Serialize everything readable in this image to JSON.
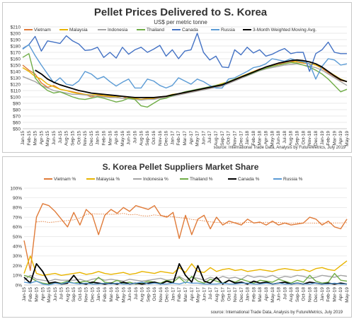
{
  "chart_data": [
    {
      "type": "line",
      "title": "Pellet Prices Delivered to S. Korea",
      "subtitle": "US$ per metric tonne",
      "source": "source: International Trade Data, Analysis by FutureMetrics, July 2019",
      "ylim": [
        50,
        210
      ],
      "y_ticks": [
        "$50",
        "$60",
        "$70",
        "$80",
        "$90",
        "$100",
        "$110",
        "$120",
        "$130",
        "$140",
        "$150",
        "$160",
        "$170",
        "$180",
        "$190",
        "$200",
        "$210"
      ],
      "x_labels": [
        "Jan-15",
        "Feb-15",
        "Mar-15",
        "Apr-15",
        "May-15",
        "Jun-15",
        "Jul-15",
        "Aug-15",
        "Sep-15",
        "Oct-15",
        "Nov-15",
        "Dec-15",
        "Jan-16",
        "Feb-16",
        "Mar-16",
        "Apr-16",
        "May-16",
        "Jun-16",
        "Jul-16",
        "Aug-16",
        "Sep-16",
        "Oct-16",
        "Nov-16",
        "Dec-16",
        "Jan-17",
        "Feb-17",
        "Mar-17",
        "Apr-17",
        "May-17",
        "Jun-17",
        "Jul-17",
        "Aug-17",
        "Sep-17",
        "Oct-17",
        "Nov-17",
        "Dec-17",
        "Jan-18",
        "Feb-18",
        "Mar-18",
        "Apr-18",
        "May-18",
        "Jun-18",
        "Jul-18",
        "Aug-18",
        "Sep-18",
        "Oct-18",
        "Nov-18",
        "Dec-18",
        "Jan-19",
        "Feb-19",
        "Mar-19",
        "Apr-19",
        "May-19"
      ],
      "grid": true,
      "legend_position": "top",
      "series": [
        {
          "name": "Vietnam",
          "color": "#e07b39",
          "values": [
            150,
            142,
            136,
            122,
            115,
            118,
            112,
            110,
            108,
            106,
            104,
            100,
            102,
            101,
            100,
            99,
            98,
            100,
            97,
            96,
            98,
            97,
            99,
            100,
            103,
            104,
            106,
            108,
            110,
            112,
            114,
            116,
            118,
            122,
            126,
            130,
            134,
            140,
            144,
            146,
            149,
            151,
            154,
            156,
            155,
            153,
            152,
            150,
            145,
            138,
            132,
            126,
            124
          ]
        },
        {
          "name": "Malaysia",
          "color": "#e8b400",
          "values": [
            146,
            140,
            132,
            128,
            120,
            116,
            112,
            110,
            107,
            105,
            104,
            103,
            104,
            102,
            101,
            100,
            101,
            99,
            98,
            96,
            97,
            98,
            100,
            101,
            104,
            105,
            107,
            109,
            111,
            113,
            115,
            118,
            121,
            124,
            128,
            132,
            136,
            140,
            143,
            146,
            148,
            150,
            152,
            154,
            156,
            154,
            152,
            150,
            146,
            140,
            134,
            128,
            124
          ]
        },
        {
          "name": "Indonesia",
          "color": "#a5a5a5",
          "values": [
            132,
            128,
            124,
            118,
            114,
            110,
            108,
            106,
            104,
            104,
            103,
            102,
            101,
            100,
            99,
            99,
            98,
            97,
            96,
            95,
            96,
            96,
            98,
            99,
            101,
            103,
            105,
            107,
            109,
            111,
            113,
            115,
            117,
            121,
            125,
            129,
            133,
            137,
            141,
            144,
            146,
            148,
            150,
            151,
            152,
            150,
            148,
            146,
            142,
            136,
            130,
            124,
            118
          ]
        },
        {
          "name": "Thailand",
          "color": "#70ad47",
          "values": [
            162,
            168,
            130,
            118,
            110,
            106,
            108,
            104,
            100,
            97,
            96,
            98,
            100,
            98,
            95,
            92,
            94,
            98,
            96,
            86,
            84,
            90,
            96,
            98,
            102,
            105,
            108,
            110,
            112,
            114,
            116,
            118,
            120,
            124,
            128,
            131,
            134,
            138,
            142,
            145,
            148,
            150,
            152,
            154,
            153,
            150,
            147,
            142,
            136,
            128,
            118,
            108,
            112
          ]
        },
        {
          "name": "Canada",
          "color": "#4472c4",
          "values": [
            176,
            182,
            195,
            172,
            188,
            186,
            184,
            196,
            188,
            183,
            173,
            174,
            178,
            162,
            170,
            161,
            178,
            167,
            174,
            178,
            170,
            175,
            181,
            164,
            174,
            160,
            172,
            174,
            200,
            170,
            158,
            164,
            147,
            146,
            174,
            166,
            178,
            169,
            174,
            164,
            167,
            172,
            176,
            168,
            170,
            170,
            140,
            168,
            174,
            186,
            170,
            168,
            168
          ]
        },
        {
          "name": "Russia",
          "color": "#5b9bd5",
          "values": [
            175,
            182,
            165,
            150,
            136,
            122,
            130,
            120,
            118,
            125,
            140,
            136,
            128,
            132,
            124,
            117,
            123,
            128,
            114,
            114,
            128,
            125,
            118,
            114,
            118,
            130,
            125,
            120,
            128,
            124,
            118,
            114,
            114,
            128,
            130,
            135,
            140,
            146,
            148,
            152,
            160,
            158,
            156,
            160,
            157,
            155,
            152,
            128,
            148,
            160,
            158,
            150,
            152
          ]
        },
        {
          "name": "3-Month Weighted Moving Avg.",
          "color": "#000000",
          "values": [
            null,
            null,
            142,
            136,
            128,
            123,
            119,
            116,
            113,
            110,
            108,
            106,
            105,
            104,
            103,
            102,
            101,
            100,
            99,
            99,
            99,
            99,
            100,
            101,
            103,
            105,
            107,
            109,
            111,
            113,
            115,
            117,
            119,
            123,
            127,
            131,
            135,
            139,
            143,
            147,
            150,
            153,
            155,
            157,
            158,
            157,
            155,
            152,
            147,
            140,
            133,
            127,
            124
          ]
        }
      ]
    },
    {
      "type": "line",
      "title": "S. Korea Pellet Suppliers Market Share",
      "source": "source: International Trade Data, Analysis by FutureMetrics, July 2019",
      "ylim": [
        0,
        100
      ],
      "y_ticks": [
        "0%",
        "10%",
        "20%",
        "30%",
        "40%",
        "50%",
        "60%",
        "70%",
        "80%",
        "90%",
        "100%"
      ],
      "x_labels": [
        "Jan-15",
        "Feb-15",
        "Mar-15",
        "Apr-15",
        "May-15",
        "Jun-15",
        "Jul-15",
        "Aug-15",
        "Sep-15",
        "Oct-15",
        "Nov-15",
        "Dec-15",
        "Jan-16",
        "Feb-16",
        "Mar-16",
        "Apr-16",
        "May-16",
        "Jun-16",
        "Jul-16",
        "Aug-16",
        "Sep-16",
        "Oct-16",
        "Nov-16",
        "Dec-16",
        "Jan-17",
        "Feb-17",
        "Mar-17",
        "Apr-17",
        "May-17",
        "Jun-17",
        "Jul-17",
        "Aug-17",
        "Sep-17",
        "Oct-17",
        "Nov-17",
        "Dec-17",
        "Jan-18",
        "Feb-18",
        "Mar-18",
        "Apr-18",
        "May-18",
        "Jun-18",
        "Jul-18",
        "Aug-18",
        "Sep-18",
        "Oct-18",
        "Nov-18",
        "Dec-18",
        "Jan-19",
        "Feb-19",
        "Mar-19",
        "Apr-19",
        "May-19"
      ],
      "grid": true,
      "legend_position": "top",
      "series": [
        {
          "name": "Vietnam %",
          "color": "#e07b39",
          "values": [
            46,
            15,
            70,
            84,
            82,
            76,
            68,
            60,
            75,
            62,
            78,
            72,
            52,
            72,
            78,
            74,
            80,
            76,
            82,
            80,
            78,
            82,
            72,
            70,
            75,
            48,
            72,
            52,
            68,
            72,
            58,
            70,
            62,
            66,
            64,
            62,
            68,
            64,
            65,
            62,
            66,
            62,
            64,
            62,
            63,
            64,
            70,
            68,
            62,
            66,
            60,
            58,
            68
          ]
        },
        {
          "name": "Malaysia %",
          "color": "#e8b400",
          "values": [
            12,
            30,
            12,
            10,
            11,
            12,
            10,
            11,
            12,
            13,
            11,
            12,
            14,
            12,
            11,
            12,
            13,
            11,
            12,
            14,
            13,
            12,
            14,
            13,
            12,
            18,
            13,
            22,
            14,
            13,
            18,
            14,
            16,
            17,
            15,
            16,
            14,
            15,
            16,
            15,
            14,
            16,
            17,
            16,
            15,
            16,
            14,
            17,
            18,
            16,
            15,
            20,
            25
          ]
        },
        {
          "name": "Indonesia %",
          "color": "#a5a5a5",
          "values": [
            5,
            10,
            6,
            5,
            4,
            6,
            5,
            5,
            5,
            6,
            4,
            6,
            7,
            5,
            6,
            5,
            4,
            6,
            5,
            4,
            5,
            6,
            7,
            5,
            6,
            9,
            5,
            8,
            7,
            5,
            8,
            6,
            9,
            7,
            8,
            6,
            10,
            8,
            9,
            8,
            10,
            7,
            9,
            8,
            10,
            9,
            7,
            8,
            10,
            9,
            8,
            10,
            9
          ]
        },
        {
          "name": "Thailand %",
          "color": "#70ad47",
          "values": [
            10,
            8,
            4,
            2,
            1,
            3,
            2,
            4,
            2,
            3,
            4,
            2,
            8,
            3,
            2,
            5,
            2,
            3,
            1,
            2,
            4,
            3,
            2,
            5,
            3,
            8,
            2,
            9,
            4,
            2,
            6,
            4,
            2,
            5,
            3,
            6,
            4,
            2,
            5,
            4,
            3,
            6,
            4,
            2,
            5,
            3,
            10,
            4,
            2,
            3,
            12,
            5,
            4
          ]
        },
        {
          "name": "Canada %",
          "color": "#000000",
          "values": [
            8,
            2,
            22,
            14,
            2,
            3,
            1,
            2,
            10,
            2,
            1,
            3,
            2,
            1,
            2,
            1,
            3,
            1,
            2,
            1,
            2,
            3,
            1,
            4,
            2,
            22,
            10,
            3,
            20,
            4,
            2,
            8,
            1,
            5,
            2,
            3,
            1,
            4,
            2,
            3,
            1,
            2,
            3,
            1,
            2,
            1,
            3,
            2,
            1,
            2,
            1,
            2,
            1
          ]
        },
        {
          "name": "Russia %",
          "color": "#5b9bd5",
          "values": [
            3,
            2,
            4,
            1,
            0,
            2,
            1,
            3,
            2,
            1,
            2,
            1,
            1,
            2,
            1,
            2,
            1,
            1,
            2,
            3,
            1,
            2,
            1,
            1,
            2,
            1,
            3,
            2,
            2,
            1,
            1,
            1,
            2,
            1,
            1,
            2,
            2,
            1,
            1,
            2,
            1,
            2,
            1,
            1,
            2,
            1,
            1,
            2,
            1,
            1,
            2,
            1,
            1
          ]
        }
      ]
    }
  ]
}
